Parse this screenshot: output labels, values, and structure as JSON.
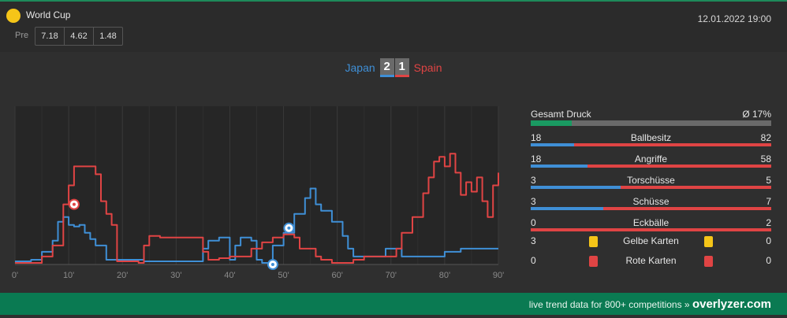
{
  "header": {
    "competition": "World Cup",
    "pre_label": "Pre",
    "odds": [
      "7.18",
      "4.62",
      "1.48"
    ],
    "datetime": "12.01.2022 19:00"
  },
  "score": {
    "home_team": "Japan",
    "away_team": "Spain",
    "home_goals": "2",
    "away_goals": "1"
  },
  "colors": {
    "home": "#3f8fd6",
    "away": "#e04444",
    "accent": "#0a7a52",
    "yellow_card": "#f5c518"
  },
  "stats": {
    "pressure_label": "Gesamt Druck",
    "pressure_value": "Ø 17%",
    "pressure_fraction": 0.17,
    "rows": [
      {
        "name": "Ballbesitz",
        "home": "18",
        "away": "82"
      },
      {
        "name": "Angriffe",
        "home": "18",
        "away": "58"
      },
      {
        "name": "Torschüsse",
        "home": "3",
        "away": "5"
      },
      {
        "name": "Schüsse",
        "home": "3",
        "away": "7"
      },
      {
        "name": "Eckbälle",
        "home": "0",
        "away": "2"
      }
    ],
    "cards": [
      {
        "name": "Gelbe Karten",
        "home": "3",
        "away": "0",
        "type": "yellow"
      },
      {
        "name": "Rote Karten",
        "home": "0",
        "away": "0",
        "type": "red"
      }
    ]
  },
  "footer": {
    "text": "live trend data for 800+ competitions »",
    "brand": "overlyzer.com"
  },
  "chart_data": {
    "type": "line",
    "x_tick_labels": [
      "0'",
      "10'",
      "20'",
      "30'",
      "40'",
      "50'",
      "60'",
      "70'",
      "80'",
      "90'"
    ],
    "xlim": [
      0,
      90
    ],
    "ylim": [
      0,
      100
    ],
    "grid": true,
    "series": [
      {
        "name": "Japan",
        "color": "#3f8fd6",
        "points": [
          [
            0,
            2
          ],
          [
            3,
            2
          ],
          [
            3,
            3
          ],
          [
            5,
            3
          ],
          [
            5,
            8
          ],
          [
            7,
            8
          ],
          [
            7,
            15
          ],
          [
            8,
            15
          ],
          [
            8,
            27
          ],
          [
            9,
            27
          ],
          [
            9,
            30
          ],
          [
            10,
            30
          ],
          [
            10,
            25
          ],
          [
            11,
            25
          ],
          [
            11,
            24
          ],
          [
            12,
            24
          ],
          [
            12,
            25
          ],
          [
            13,
            25
          ],
          [
            13,
            20
          ],
          [
            14,
            20
          ],
          [
            14,
            16
          ],
          [
            15,
            16
          ],
          [
            15,
            12
          ],
          [
            17,
            12
          ],
          [
            17,
            3
          ],
          [
            24,
            3
          ],
          [
            24,
            2
          ],
          [
            35,
            2
          ],
          [
            35,
            10
          ],
          [
            36,
            10
          ],
          [
            36,
            15
          ],
          [
            38,
            15
          ],
          [
            38,
            17
          ],
          [
            40,
            17
          ],
          [
            40,
            3
          ],
          [
            41,
            3
          ],
          [
            41,
            12
          ],
          [
            42,
            12
          ],
          [
            42,
            17
          ],
          [
            44,
            17
          ],
          [
            44,
            15
          ],
          [
            45,
            15
          ],
          [
            45,
            3
          ],
          [
            46,
            3
          ],
          [
            46,
            1
          ],
          [
            48,
            1
          ],
          [
            48,
            12
          ],
          [
            50,
            12
          ],
          [
            50,
            20
          ],
          [
            52,
            20
          ],
          [
            52,
            32
          ],
          [
            54,
            32
          ],
          [
            54,
            42
          ],
          [
            55,
            42
          ],
          [
            55,
            48
          ],
          [
            56,
            48
          ],
          [
            56,
            38
          ],
          [
            57,
            38
          ],
          [
            57,
            34
          ],
          [
            59,
            34
          ],
          [
            59,
            27
          ],
          [
            61,
            27
          ],
          [
            61,
            18
          ],
          [
            62,
            18
          ],
          [
            62,
            10
          ],
          [
            63,
            10
          ],
          [
            63,
            5
          ],
          [
            69,
            5
          ],
          [
            69,
            10
          ],
          [
            72,
            10
          ],
          [
            72,
            5
          ],
          [
            80,
            5
          ],
          [
            80,
            8
          ],
          [
            83,
            8
          ],
          [
            83,
            10
          ],
          [
            90,
            10
          ]
        ]
      },
      {
        "name": "Spain",
        "color": "#e04444",
        "points": [
          [
            0,
            1
          ],
          [
            5,
            1
          ],
          [
            5,
            5
          ],
          [
            7,
            5
          ],
          [
            7,
            12
          ],
          [
            9,
            12
          ],
          [
            9,
            38
          ],
          [
            10,
            38
          ],
          [
            10,
            50
          ],
          [
            11,
            50
          ],
          [
            11,
            62
          ],
          [
            15,
            62
          ],
          [
            15,
            57
          ],
          [
            16,
            57
          ],
          [
            16,
            40
          ],
          [
            17,
            40
          ],
          [
            17,
            32
          ],
          [
            18,
            32
          ],
          [
            18,
            25
          ],
          [
            19,
            25
          ],
          [
            19,
            2
          ],
          [
            23,
            2
          ],
          [
            23,
            1
          ],
          [
            24,
            1
          ],
          [
            24,
            12
          ],
          [
            25,
            12
          ],
          [
            25,
            18
          ],
          [
            27,
            18
          ],
          [
            27,
            17
          ],
          [
            33,
            17
          ],
          [
            33,
            17
          ],
          [
            35,
            17
          ],
          [
            35,
            8
          ],
          [
            36,
            8
          ],
          [
            36,
            3
          ],
          [
            38,
            3
          ],
          [
            38,
            4
          ],
          [
            40,
            4
          ],
          [
            40,
            5
          ],
          [
            44,
            5
          ],
          [
            44,
            10
          ],
          [
            46,
            10
          ],
          [
            46,
            14
          ],
          [
            48,
            14
          ],
          [
            48,
            17
          ],
          [
            50,
            17
          ],
          [
            50,
            19
          ],
          [
            52,
            19
          ],
          [
            52,
            17
          ],
          [
            53,
            17
          ],
          [
            53,
            10
          ],
          [
            56,
            10
          ],
          [
            56,
            5
          ],
          [
            57,
            5
          ],
          [
            57,
            3
          ],
          [
            59,
            3
          ],
          [
            59,
            1
          ],
          [
            63,
            1
          ],
          [
            63,
            3
          ],
          [
            65,
            3
          ],
          [
            65,
            5
          ],
          [
            71,
            5
          ],
          [
            71,
            10
          ],
          [
            72,
            10
          ],
          [
            72,
            20
          ],
          [
            74,
            20
          ],
          [
            74,
            30
          ],
          [
            76,
            30
          ],
          [
            76,
            45
          ],
          [
            77,
            45
          ],
          [
            77,
            55
          ],
          [
            78,
            55
          ],
          [
            78,
            65
          ],
          [
            79,
            65
          ],
          [
            79,
            68
          ],
          [
            80,
            68
          ],
          [
            80,
            62
          ],
          [
            81,
            62
          ],
          [
            81,
            70
          ],
          [
            82,
            70
          ],
          [
            82,
            58
          ],
          [
            83,
            58
          ],
          [
            83,
            44
          ],
          [
            84,
            44
          ],
          [
            84,
            52
          ],
          [
            85,
            52
          ],
          [
            85,
            46
          ],
          [
            86,
            46
          ],
          [
            86,
            55
          ],
          [
            87,
            55
          ],
          [
            87,
            40
          ],
          [
            88,
            40
          ],
          [
            88,
            30
          ],
          [
            89,
            30
          ],
          [
            89,
            50
          ],
          [
            90,
            50
          ],
          [
            90,
            58
          ]
        ]
      }
    ],
    "goals": [
      {
        "team": "Spain",
        "minute": 11,
        "value": 38
      },
      {
        "team": "Japan",
        "minute": 51,
        "value": 23
      },
      {
        "team": "Japan",
        "minute": 48,
        "value": 0
      }
    ]
  }
}
